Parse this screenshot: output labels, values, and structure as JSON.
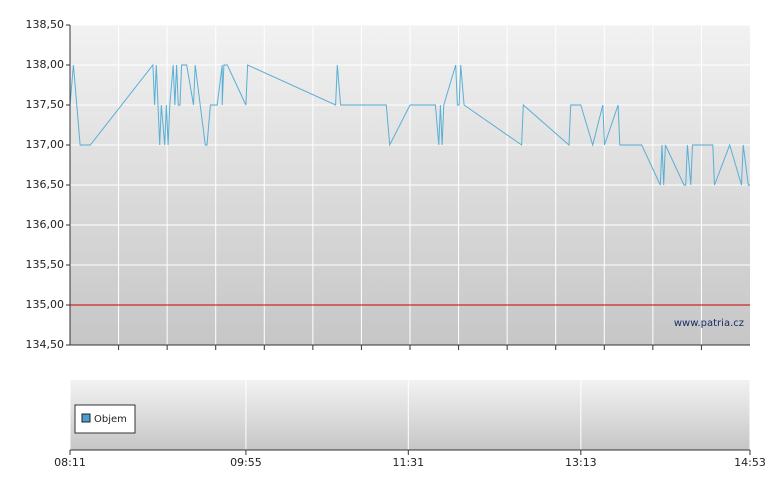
{
  "chart_data": {
    "type": "line",
    "x": [
      491,
      493,
      495,
      497,
      503,
      540,
      541,
      542,
      544,
      545,
      547,
      548,
      549,
      550,
      552,
      553,
      554,
      555,
      556,
      557,
      560,
      564,
      565,
      568,
      571,
      572,
      574,
      578,
      581,
      581,
      582,
      584,
      595,
      596,
      648,
      649,
      651,
      678,
      680,
      692,
      707,
      709,
      710,
      711,
      712,
      719,
      720,
      721,
      722,
      724,
      758,
      759,
      786,
      787,
      793,
      800,
      806,
      807,
      815,
      816,
      829,
      840,
      841,
      842,
      843,
      854,
      855,
      856,
      858,
      859,
      862,
      863,
      871,
      872,
      881,
      888,
      889,
      892,
      893
    ],
    "values": [
      137.5,
      138,
      137.5,
      137,
      137,
      138,
      137.5,
      138,
      137,
      137.5,
      137,
      137.5,
      137,
      137.5,
      138,
      137.5,
      138,
      137.5,
      137.5,
      138,
      138,
      137.5,
      138,
      137.5,
      137,
      137,
      137.5,
      137.5,
      138,
      137.5,
      138,
      138,
      137.5,
      138,
      137.5,
      138,
      137.5,
      137.5,
      137,
      137.5,
      137.5,
      137,
      137.5,
      137,
      137.5,
      138,
      137.5,
      137.5,
      138,
      137.5,
      137,
      137.5,
      137,
      137.5,
      137.5,
      137,
      137.5,
      137,
      137.5,
      137,
      137,
      136.5,
      137,
      136.5,
      137,
      136.5,
      136.5,
      137,
      136.5,
      137,
      137,
      137,
      137,
      136.5,
      137,
      136.5,
      137,
      136.5,
      136.5
    ],
    "color": "#5aafd6",
    "xlim": [
      491,
      893
    ],
    "xticks": [
      {
        "value": 491,
        "label": "08:11"
      },
      {
        "value": 595,
        "label": "09:55"
      },
      {
        "value": 691,
        "label": "11:31"
      },
      {
        "value": 793,
        "label": "13:13"
      },
      {
        "value": 893,
        "label": "14:53"
      }
    ],
    "ylim": [
      134.5,
      138.5
    ],
    "yticks": [
      {
        "value": 134.5,
        "label": "134,50"
      },
      {
        "value": 135,
        "label": "135,00"
      },
      {
        "value": 135.5,
        "label": "135,50"
      },
      {
        "value": 136,
        "label": "136,00"
      },
      {
        "value": 136.5,
        "label": "136,50"
      },
      {
        "value": 137,
        "label": "137,00"
      },
      {
        "value": 137.5,
        "label": "137,50"
      },
      {
        "value": 138,
        "label": "138,00"
      },
      {
        "value": 138.5,
        "label": "138,50"
      }
    ],
    "grid": true,
    "reference_line": {
      "value": 135,
      "color": "#cc0000"
    },
    "watermark": "www.patria.cz",
    "volume": {
      "name": "Objem",
      "color": "#4a9fd0"
    }
  }
}
